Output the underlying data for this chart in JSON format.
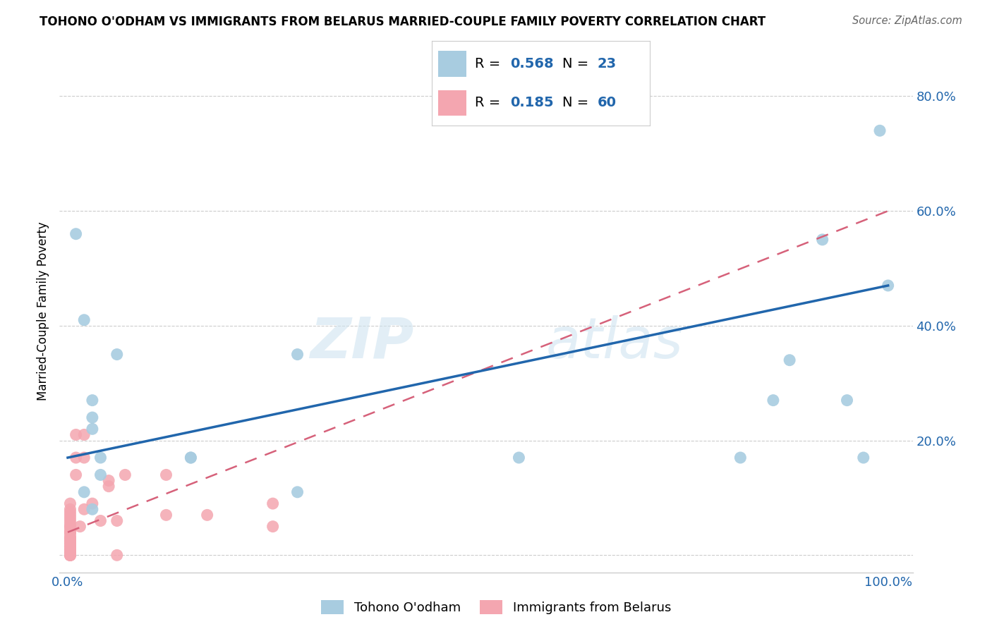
{
  "title": "TOHONO O'ODHAM VS IMMIGRANTS FROM BELARUS MARRIED-COUPLE FAMILY POVERTY CORRELATION CHART",
  "source": "Source: ZipAtlas.com",
  "ylabel_label": "Married-Couple Family Poverty",
  "legend_blue_R": "0.568",
  "legend_blue_N": "23",
  "legend_pink_R": "0.185",
  "legend_pink_N": "60",
  "legend_blue_label": "Tohono O'odham",
  "legend_pink_label": "Immigrants from Belarus",
  "blue_color": "#a8cce0",
  "pink_color": "#f4a6b0",
  "blue_line_color": "#2166ac",
  "pink_line_color": "#d6617a",
  "watermark_zip": "ZIP",
  "watermark_atlas": "atlas",
  "blue_line_x0": 0.0,
  "blue_line_y0": 0.17,
  "blue_line_x1": 1.0,
  "blue_line_y1": 0.47,
  "pink_line_x0": 0.0,
  "pink_line_y0": 0.04,
  "pink_line_x1": 1.0,
  "pink_line_y1": 0.6,
  "blue_scatter_x": [
    0.01,
    0.02,
    0.03,
    0.03,
    0.03,
    0.04,
    0.04,
    0.02,
    0.03,
    0.06,
    0.15,
    0.15,
    0.28,
    0.28,
    0.55,
    0.82,
    0.86,
    0.88,
    0.92,
    0.95,
    0.97,
    0.99,
    1.0
  ],
  "blue_scatter_y": [
    0.56,
    0.41,
    0.24,
    0.27,
    0.08,
    0.17,
    0.14,
    0.11,
    0.22,
    0.35,
    0.17,
    0.17,
    0.35,
    0.11,
    0.17,
    0.17,
    0.27,
    0.34,
    0.55,
    0.27,
    0.17,
    0.74,
    0.47
  ],
  "pink_scatter_x": [
    0.003,
    0.003,
    0.003,
    0.003,
    0.003,
    0.003,
    0.003,
    0.003,
    0.003,
    0.003,
    0.003,
    0.003,
    0.003,
    0.003,
    0.003,
    0.003,
    0.003,
    0.003,
    0.003,
    0.003,
    0.003,
    0.003,
    0.003,
    0.003,
    0.003,
    0.003,
    0.003,
    0.003,
    0.003,
    0.003,
    0.003,
    0.003,
    0.003,
    0.003,
    0.003,
    0.003,
    0.003,
    0.003,
    0.003,
    0.003,
    0.003,
    0.01,
    0.01,
    0.01,
    0.015,
    0.02,
    0.02,
    0.02,
    0.03,
    0.04,
    0.05,
    0.05,
    0.06,
    0.06,
    0.07,
    0.12,
    0.12,
    0.17,
    0.25,
    0.25
  ],
  "pink_scatter_y": [
    0.0,
    0.0,
    0.0,
    0.0,
    0.0,
    0.005,
    0.005,
    0.005,
    0.005,
    0.01,
    0.01,
    0.01,
    0.01,
    0.01,
    0.015,
    0.015,
    0.015,
    0.015,
    0.02,
    0.02,
    0.02,
    0.025,
    0.025,
    0.025,
    0.03,
    0.03,
    0.03,
    0.035,
    0.04,
    0.04,
    0.04,
    0.045,
    0.05,
    0.05,
    0.055,
    0.06,
    0.065,
    0.07,
    0.075,
    0.08,
    0.09,
    0.21,
    0.17,
    0.14,
    0.05,
    0.21,
    0.17,
    0.08,
    0.09,
    0.06,
    0.13,
    0.12,
    0.06,
    0.0,
    0.14,
    0.07,
    0.14,
    0.07,
    0.05,
    0.09
  ],
  "xlim": [
    -0.01,
    1.03
  ],
  "ylim": [
    -0.03,
    0.88
  ],
  "yticks": [
    0.0,
    0.2,
    0.4,
    0.6,
    0.8
  ],
  "xticks": [
    0.0,
    0.5,
    1.0
  ],
  "ytick_labels": [
    "",
    "20.0%",
    "40.0%",
    "60.0%",
    "80.0%"
  ],
  "xtick_labels": [
    "0.0%",
    "",
    "100.0%"
  ]
}
